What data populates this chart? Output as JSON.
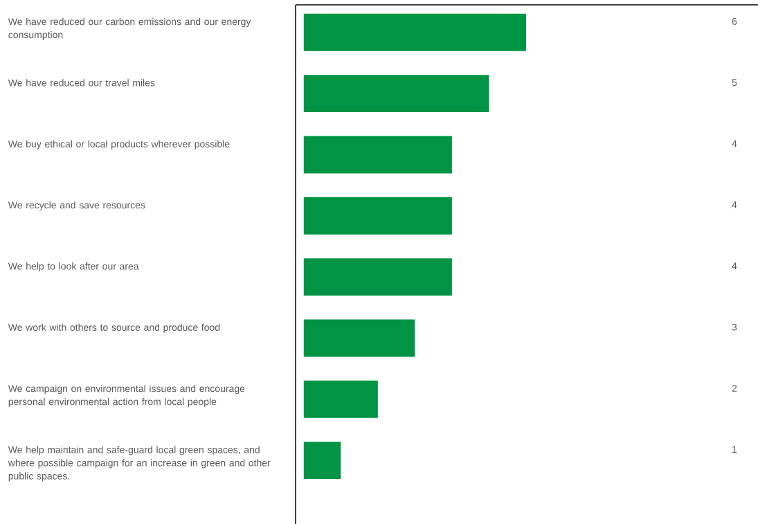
{
  "chart_data": {
    "type": "bar",
    "orientation": "horizontal",
    "color": "#009444",
    "data_labels": true,
    "categories": [
      "We have reduced our carbon emissions and our energy consumption",
      "We have reduced our travel miles",
      "We buy ethical or local products wherever possible",
      "We recycle and save resources",
      "We help to look after our area",
      "We work with others to source and produce food",
      "We campaign on environmental issues and encourage personal environmental action from local people",
      "We help maintain and safe-guard local green spaces, and where possible campaign for an increase in green and other public spaces."
    ],
    "values": [
      6,
      5,
      4,
      4,
      4,
      3,
      2,
      1
    ]
  }
}
